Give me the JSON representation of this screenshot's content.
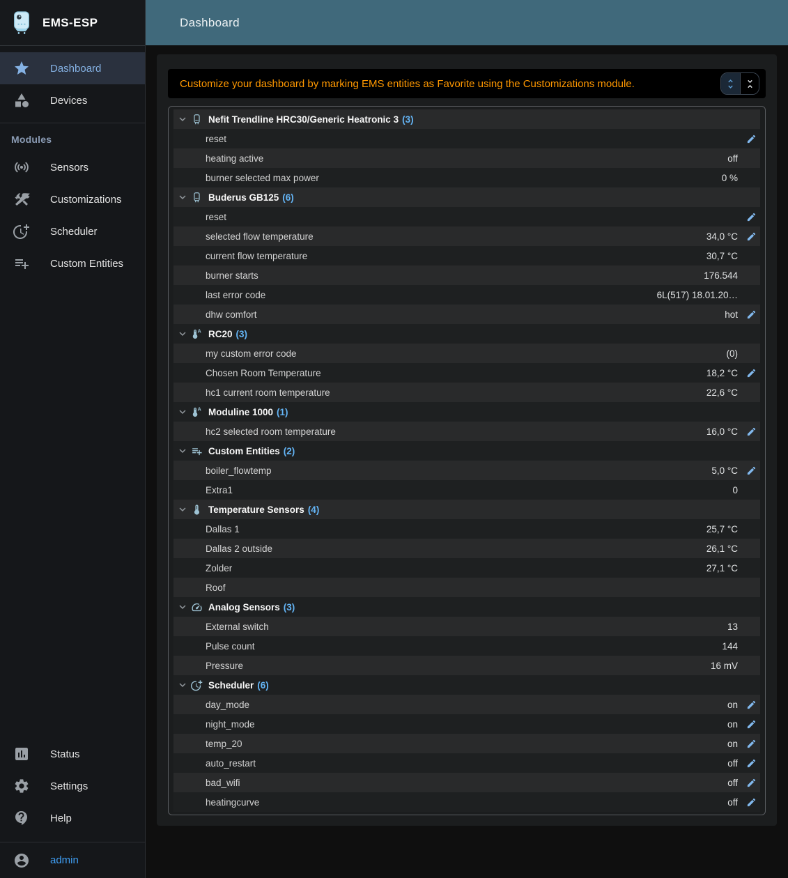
{
  "app": {
    "title": "EMS-ESP",
    "header": "Dashboard"
  },
  "colors": {
    "accent": "#64b5f6",
    "appbar": "#40697b",
    "notice_orange": "#ff9800",
    "selected_blue": "#85b2e4",
    "selected_bg": "#2a313e",
    "admin_blue": "#3f9ef3"
  },
  "sidebar": {
    "main_items": [
      {
        "label": "Dashboard",
        "icon": "star-icon",
        "selected": true
      },
      {
        "label": "Devices",
        "icon": "category-icon",
        "selected": false
      }
    ],
    "modules_label": "Modules",
    "module_items": [
      {
        "label": "Sensors",
        "icon": "sensors-icon",
        "selected": false
      },
      {
        "label": "Customizations",
        "icon": "construction-icon",
        "selected": false
      },
      {
        "label": "Scheduler",
        "icon": "more-time-icon",
        "selected": false
      },
      {
        "label": "Custom Entities",
        "icon": "playlist-add-icon",
        "selected": false
      }
    ],
    "bottom_items": [
      {
        "label": "Status",
        "icon": "analytics-icon",
        "selected": false
      },
      {
        "label": "Settings",
        "icon": "gear-icon",
        "selected": false
      },
      {
        "label": "Help",
        "icon": "help-icon",
        "selected": false
      }
    ],
    "user": {
      "label": "admin",
      "icon": "account-circle-icon"
    }
  },
  "notice": {
    "text": "Customize your dashboard by marking EMS entities as Favorite using the Customizations module.",
    "buttons": [
      {
        "name": "expand-all",
        "icon": "unfold-more-icon",
        "active": true
      },
      {
        "name": "collapse-all",
        "icon": "unfold-less-icon",
        "active": false
      }
    ]
  },
  "tree": {
    "groups": [
      {
        "name": "Nefit Trendline HRC30/Generic Heatronic 3",
        "count": "(3)",
        "icon": "boiler-icon",
        "rows": [
          {
            "label": "reset",
            "value": "",
            "editable": true
          },
          {
            "label": "heating active",
            "value": "off",
            "editable": false
          },
          {
            "label": "burner selected max power",
            "value": "0 %",
            "editable": false
          }
        ]
      },
      {
        "name": "Buderus GB125",
        "count": "(6)",
        "icon": "boiler-icon",
        "rows": [
          {
            "label": "reset",
            "value": "",
            "editable": true
          },
          {
            "label": "selected flow temperature",
            "value": "34,0 °C",
            "editable": true
          },
          {
            "label": "current flow temperature",
            "value": "30,7 °C",
            "editable": false
          },
          {
            "label": "burner starts",
            "value": "176.544",
            "editable": false
          },
          {
            "label": "last error code",
            "value": "6L(517) 18.01.20…",
            "editable": false
          },
          {
            "label": "dhw comfort",
            "value": "hot",
            "editable": true
          }
        ]
      },
      {
        "name": "RC20",
        "count": "(3)",
        "icon": "thermostat-auto-icon",
        "rows": [
          {
            "label": "my custom error code",
            "value": "(0)",
            "editable": false
          },
          {
            "label": "Chosen Room Temperature",
            "value": "18,2 °C",
            "editable": true
          },
          {
            "label": "hc1 current room temperature",
            "value": "22,6 °C",
            "editable": false
          }
        ]
      },
      {
        "name": "Moduline 1000",
        "count": "(1)",
        "icon": "thermostat-auto-icon",
        "rows": [
          {
            "label": "hc2 selected room temperature",
            "value": "16,0 °C",
            "editable": true
          }
        ]
      },
      {
        "name": "Custom Entities",
        "count": "(2)",
        "icon": "playlist-add-icon",
        "rows": [
          {
            "label": "boiler_flowtemp",
            "value": "5,0 °C",
            "editable": true
          },
          {
            "label": "Extra1",
            "value": "0",
            "editable": false
          }
        ]
      },
      {
        "name": "Temperature Sensors",
        "count": "(4)",
        "icon": "thermometer-icon",
        "rows": [
          {
            "label": "Dallas 1",
            "value": "25,7 °C",
            "editable": false
          },
          {
            "label": "Dallas 2 outside",
            "value": "26,1 °C",
            "editable": false
          },
          {
            "label": "Zolder",
            "value": "27,1 °C",
            "editable": false
          },
          {
            "label": "Roof",
            "value": "",
            "editable": false
          }
        ]
      },
      {
        "name": "Analog Sensors",
        "count": "(3)",
        "icon": "gauge-icon",
        "rows": [
          {
            "label": "External switch",
            "value": "13",
            "editable": false
          },
          {
            "label": "Pulse count",
            "value": "144",
            "editable": false
          },
          {
            "label": "Pressure",
            "value": "16 mV",
            "editable": false
          }
        ]
      },
      {
        "name": "Scheduler",
        "count": "(6)",
        "icon": "more-time-icon",
        "rows": [
          {
            "label": "day_mode",
            "value": "on",
            "editable": true
          },
          {
            "label": "night_mode",
            "value": "on",
            "editable": true
          },
          {
            "label": "temp_20",
            "value": "on",
            "editable": true
          },
          {
            "label": "auto_restart",
            "value": "off",
            "editable": true
          },
          {
            "label": "bad_wifi",
            "value": "off",
            "editable": true
          },
          {
            "label": "heatingcurve",
            "value": "off",
            "editable": true
          }
        ]
      }
    ]
  }
}
